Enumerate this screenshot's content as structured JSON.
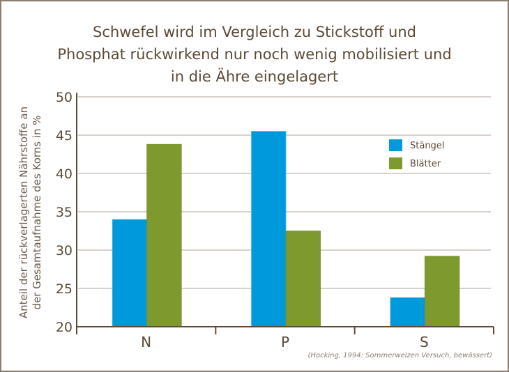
{
  "chart_data": {
    "type": "bar",
    "title_lines": [
      "Schwefel wird im Vergleich zu Stickstoff und",
      "Phosphat rückwirkend nur noch wenig mobilisiert und",
      "in die Ähre eingelagert"
    ],
    "ylabel_lines": [
      "Anteil der rückverlagerten Nährstoffe an",
      "der Gesamtaufnahme des Korns in %"
    ],
    "xlabel": "",
    "categories": [
      "N",
      "P",
      "S"
    ],
    "series": [
      {
        "name": "Stängel",
        "color": "#0099dc",
        "values": [
          34.0,
          45.5,
          23.8
        ]
      },
      {
        "name": "Blätter",
        "color": "#7e9a2e",
        "values": [
          43.8,
          32.5,
          29.2
        ]
      }
    ],
    "ylim": [
      20,
      50
    ],
    "yticks": [
      20,
      25,
      30,
      35,
      40,
      45,
      50
    ],
    "grid": true,
    "legend_position": "top-right",
    "source_note": "(Hocking, 1994: Sommerweizen Versuch, bewässert)"
  }
}
